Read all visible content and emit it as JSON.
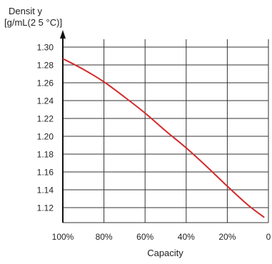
{
  "chart_data": {
    "type": "line",
    "ylabel_line1": "Densit y",
    "ylabel_line2": "[g/mL(2 5 °C)]",
    "xlabel": "Capacity",
    "x_categories": [
      "100%",
      "80%",
      "60%",
      "40%",
      "20%",
      "0"
    ],
    "x_values": [
      100,
      80,
      60,
      40,
      20,
      0
    ],
    "xlim": [
      100,
      0
    ],
    "ylim": [
      1.1,
      1.3
    ],
    "y_ticks": [
      "1.30",
      "1.28",
      "1.26",
      "1.24",
      "1.22",
      "1.20",
      "1.18",
      "1.16",
      "1.14",
      "1.12"
    ],
    "grid": true,
    "series": [
      {
        "color": "#d42a2a",
        "x": [
          100,
          90,
          80,
          70,
          60,
          50,
          40,
          30,
          20,
          10,
          2
        ],
        "y": [
          1.287,
          1.275,
          1.261,
          1.244,
          1.226,
          1.206,
          1.187,
          1.166,
          1.144,
          1.123,
          1.109
        ]
      }
    ]
  }
}
